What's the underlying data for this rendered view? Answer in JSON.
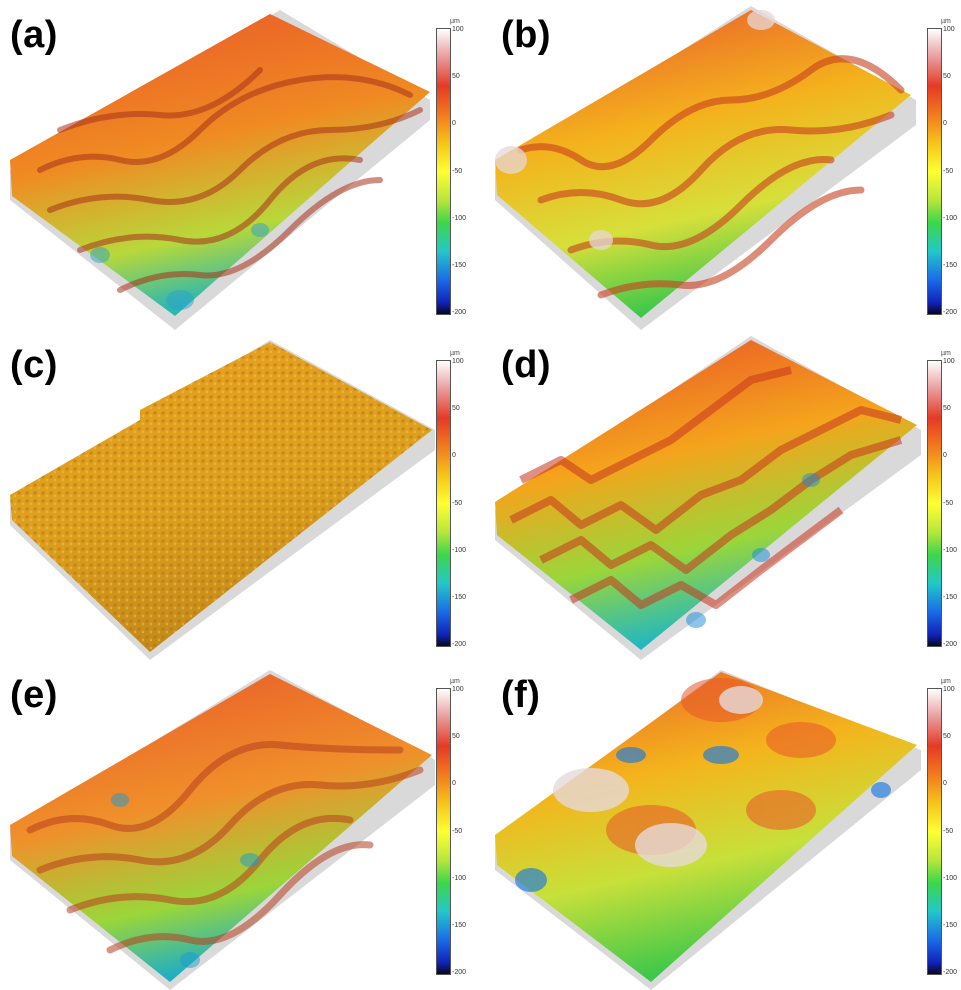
{
  "figure": {
    "panels": [
      {
        "label": "(a)",
        "unit": "µm",
        "ticks": [
          "100",
          "50",
          "0",
          "-50",
          "-100",
          "-150",
          "-200"
        ],
        "surface": "surface-a"
      },
      {
        "label": "(b)",
        "unit": "µm",
        "ticks": [
          "100",
          "50",
          "0",
          "-50",
          "-100",
          "-150",
          "-200"
        ],
        "surface": "surface-b"
      },
      {
        "label": "(c)",
        "unit": "µm",
        "ticks": [
          "100",
          "50",
          "0",
          "-50",
          "-100",
          "-150",
          "-200"
        ],
        "surface": "surface-c"
      },
      {
        "label": "(d)",
        "unit": "µm",
        "ticks": [
          "100",
          "50",
          "0",
          "-50",
          "-100",
          "-150",
          "-200"
        ],
        "surface": "surface-d"
      },
      {
        "label": "(e)",
        "unit": "µm",
        "ticks": [
          "100",
          "50",
          "0",
          "-50",
          "-100",
          "-150",
          "-200"
        ],
        "surface": "surface-e"
      },
      {
        "label": "(f)",
        "unit": "µm",
        "ticks": [
          "100",
          "50",
          "0",
          "-50",
          "-100",
          "-150",
          "-200"
        ],
        "surface": "surface-f"
      }
    ],
    "colors": {
      "peak": "#f0e0e0",
      "high": "#e8552a",
      "mid": "#f4b21c",
      "low": "#3ec84a",
      "deep": "#1a6ce8",
      "base": "#d2d2d2"
    }
  }
}
